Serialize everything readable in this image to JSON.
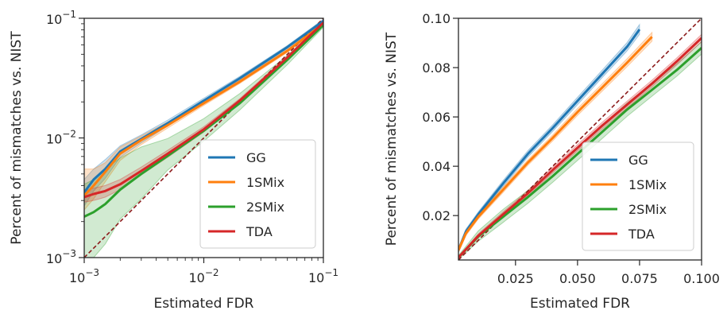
{
  "chart_data": [
    {
      "type": "line",
      "xscale": "log",
      "yscale": "log",
      "xlim": [
        0.001,
        0.1
      ],
      "ylim": [
        0.001,
        0.1
      ],
      "xlabel": "Estimated FDR",
      "ylabel": "Percent of mismatches vs. NIST",
      "xticklabels": [
        "10^-3",
        "10^-2",
        "10^-1"
      ],
      "yticklabels": [
        "10^-3",
        "10^-2",
        "10^-1"
      ],
      "grid": false,
      "legend": "lower-right",
      "reference_line": {
        "style": "dashed",
        "color": "#8b1a1a",
        "x": [
          0.001,
          0.1
        ],
        "y": [
          0.001,
          0.1
        ]
      },
      "series": [
        {
          "name": "GG",
          "color": "#1f77b4",
          "x": [
            0.001,
            0.0012,
            0.0015,
            0.002,
            0.003,
            0.005,
            0.01,
            0.02,
            0.05,
            0.1
          ],
          "y": [
            0.0035,
            0.0045,
            0.0055,
            0.0077,
            0.0098,
            0.0133,
            0.0205,
            0.0315,
            0.0575,
            0.095
          ],
          "lower": [
            0.0027,
            0.0036,
            0.0046,
            0.0069,
            0.0091,
            0.0126,
            0.0196,
            0.0303,
            0.0558,
            0.092
          ],
          "upper": [
            0.0045,
            0.0055,
            0.0066,
            0.0086,
            0.0106,
            0.0141,
            0.0215,
            0.0327,
            0.0592,
            0.098
          ]
        },
        {
          "name": "1SMix",
          "color": "#ff7f0e",
          "x": [
            0.001,
            0.0012,
            0.0015,
            0.002,
            0.003,
            0.005,
            0.01,
            0.02,
            0.05,
            0.1
          ],
          "y": [
            0.0033,
            0.004,
            0.0052,
            0.0074,
            0.0096,
            0.0128,
            0.0195,
            0.0295,
            0.0535,
            0.09
          ],
          "lower": [
            0.0025,
            0.0031,
            0.0043,
            0.0065,
            0.0088,
            0.0121,
            0.0187,
            0.0285,
            0.0518,
            0.087
          ],
          "upper": [
            0.0055,
            0.0055,
            0.0062,
            0.0084,
            0.0104,
            0.0136,
            0.0204,
            0.0306,
            0.0552,
            0.093
          ]
        },
        {
          "name": "2SMix",
          "color": "#2ca02c",
          "x": [
            0.001,
            0.0012,
            0.0015,
            0.002,
            0.003,
            0.005,
            0.01,
            0.02,
            0.05,
            0.1
          ],
          "y": [
            0.0022,
            0.0024,
            0.0028,
            0.0037,
            0.005,
            0.0071,
            0.0115,
            0.0195,
            0.045,
            0.088
          ],
          "lower": [
            0.001,
            0.001,
            0.0013,
            0.0021,
            0.0031,
            0.0054,
            0.0094,
            0.0171,
            0.041,
            0.084
          ],
          "upper": [
            0.0041,
            0.0045,
            0.0055,
            0.0068,
            0.0084,
            0.0099,
            0.0145,
            0.0235,
            0.049,
            0.092
          ]
        },
        {
          "name": "TDA",
          "color": "#d62728",
          "x": [
            0.001,
            0.0012,
            0.0015,
            0.002,
            0.003,
            0.005,
            0.01,
            0.02,
            0.05,
            0.1
          ],
          "y": [
            0.0032,
            0.0034,
            0.0036,
            0.0041,
            0.0053,
            0.0074,
            0.0118,
            0.0205,
            0.047,
            0.092
          ],
          "lower": [
            0.0029,
            0.003,
            0.0032,
            0.0037,
            0.0049,
            0.0069,
            0.0112,
            0.0197,
            0.0455,
            0.089
          ],
          "upper": [
            0.0036,
            0.0038,
            0.004,
            0.0045,
            0.0057,
            0.0079,
            0.0124,
            0.0213,
            0.0485,
            0.095
          ]
        }
      ]
    },
    {
      "type": "line",
      "xscale": "linear",
      "yscale": "linear",
      "xlim": [
        0.002,
        0.1
      ],
      "ylim": [
        0.002,
        0.1
      ],
      "xlabel": "Estimated FDR",
      "ylabel": "Percent of mismatches vs. NIST",
      "xticks": [
        0.025,
        0.05,
        0.075,
        0.1
      ],
      "xticklabels": [
        "0.025",
        "0.050",
        "0.075",
        "0.100"
      ],
      "yticks": [
        0.02,
        0.04,
        0.06,
        0.08,
        0.1
      ],
      "yticklabels": [
        "0.02",
        "0.04",
        "0.06",
        "0.08",
        "0.10"
      ],
      "grid": false,
      "legend": "lower-right",
      "reference_line": {
        "style": "dashed",
        "color": "#8b1a1a",
        "x": [
          0.002,
          0.1
        ],
        "y": [
          0.002,
          0.1
        ]
      },
      "series": [
        {
          "name": "GG",
          "color": "#1f77b4",
          "x": [
            0.002,
            0.005,
            0.01,
            0.02,
            0.03,
            0.04,
            0.05,
            0.06,
            0.07,
            0.075
          ],
          "y": [
            0.006,
            0.0135,
            0.0205,
            0.033,
            0.045,
            0.0555,
            0.0665,
            0.0775,
            0.0885,
            0.0955
          ],
          "lower": [
            0.005,
            0.0125,
            0.0195,
            0.0318,
            0.0437,
            0.0542,
            0.065,
            0.076,
            0.0868,
            0.0935
          ],
          "upper": [
            0.007,
            0.0145,
            0.0215,
            0.0342,
            0.0463,
            0.0568,
            0.068,
            0.079,
            0.0902,
            0.0975
          ]
        },
        {
          "name": "1SMix",
          "color": "#ff7f0e",
          "x": [
            0.002,
            0.005,
            0.01,
            0.02,
            0.03,
            0.04,
            0.05,
            0.06,
            0.07,
            0.08
          ],
          "y": [
            0.006,
            0.0128,
            0.0195,
            0.0305,
            0.0415,
            0.0515,
            0.062,
            0.072,
            0.082,
            0.0925
          ],
          "lower": [
            0.005,
            0.0119,
            0.0186,
            0.0294,
            0.0404,
            0.0503,
            0.0606,
            0.0705,
            0.0804,
            0.0907
          ],
          "upper": [
            0.007,
            0.0137,
            0.0204,
            0.0316,
            0.0426,
            0.0527,
            0.0634,
            0.0735,
            0.0836,
            0.0943
          ]
        },
        {
          "name": "2SMix",
          "color": "#2ca02c",
          "x": [
            0.002,
            0.01,
            0.02,
            0.03,
            0.04,
            0.05,
            0.06,
            0.07,
            0.08,
            0.09,
            0.1
          ],
          "y": [
            0.003,
            0.0115,
            0.0195,
            0.0275,
            0.036,
            0.045,
            0.054,
            0.063,
            0.071,
            0.079,
            0.088
          ],
          "lower": [
            0.0022,
            0.0096,
            0.0172,
            0.025,
            0.0335,
            0.0424,
            0.0513,
            0.0603,
            0.0684,
            0.0765,
            0.0855
          ],
          "upper": [
            0.0038,
            0.0138,
            0.0225,
            0.0302,
            0.0385,
            0.0476,
            0.0567,
            0.0657,
            0.0736,
            0.0815,
            0.0905
          ]
        },
        {
          "name": "TDA",
          "color": "#d62728",
          "x": [
            0.002,
            0.01,
            0.02,
            0.03,
            0.04,
            0.05,
            0.06,
            0.07,
            0.08,
            0.09,
            0.1
          ],
          "y": [
            0.003,
            0.0118,
            0.0205,
            0.029,
            0.0385,
            0.0475,
            0.0565,
            0.065,
            0.0735,
            0.0825,
            0.092
          ],
          "lower": [
            0.0026,
            0.011,
            0.0195,
            0.0279,
            0.0373,
            0.0462,
            0.0551,
            0.0636,
            0.0721,
            0.0811,
            0.0905
          ],
          "upper": [
            0.0034,
            0.0126,
            0.0215,
            0.0301,
            0.0397,
            0.0488,
            0.0579,
            0.0664,
            0.0749,
            0.0839,
            0.0935
          ]
        }
      ]
    }
  ]
}
